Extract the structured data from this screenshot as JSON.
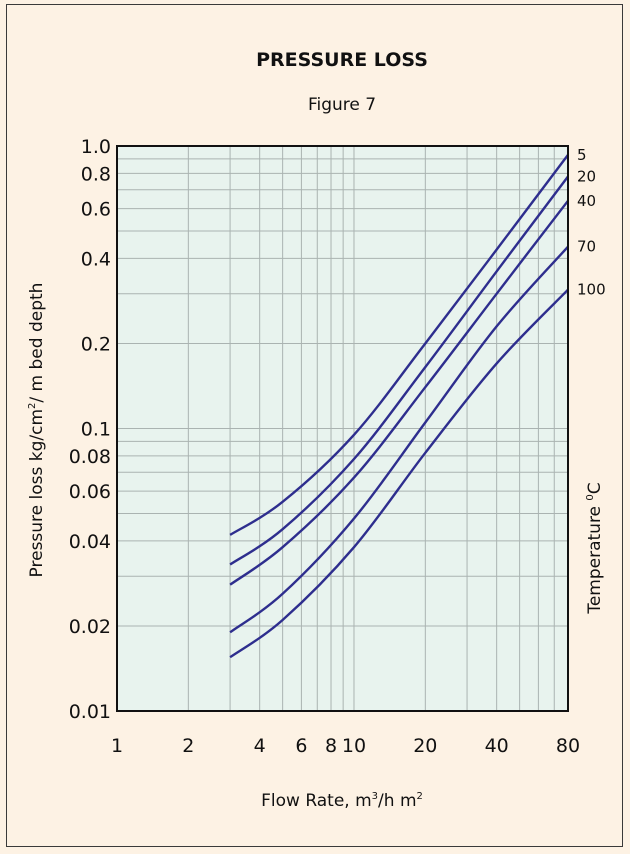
{
  "chart_data": {
    "type": "line",
    "title": "PRESSURE LOSS",
    "subtitle": "Figure 7",
    "xlabel": {
      "text": "Flow Rate, m",
      "sup1": "3",
      "mid": "/h m",
      "sup2": "2"
    },
    "ylabel": {
      "text": "Pressure loss kg/cm",
      "sup": "2",
      "rest": "/ m bed depth"
    },
    "y2label": {
      "text": "Temperature ",
      "sup": "0",
      "rest": "C"
    },
    "xscale": "log",
    "yscale": "log",
    "xlim": [
      1,
      80
    ],
    "ylim": [
      0.01,
      1.0
    ],
    "grid": true,
    "background": "#e8f3ee",
    "line_color": "#2e2e8e",
    "xticks": [
      {
        "v": 1,
        "label": "1"
      },
      {
        "v": 2,
        "label": "2"
      },
      {
        "v": 4,
        "label": "4"
      },
      {
        "v": 6,
        "label": "6"
      },
      {
        "v": 8,
        "label": "8"
      },
      {
        "v": 10,
        "label": "10"
      },
      {
        "v": 20,
        "label": "20"
      },
      {
        "v": 40,
        "label": "40"
      },
      {
        "v": 80,
        "label": "80"
      }
    ],
    "yticks": [
      {
        "v": 0.01,
        "label": "0.01"
      },
      {
        "v": 0.02,
        "label": "0.02"
      },
      {
        "v": 0.04,
        "label": "0.04"
      },
      {
        "v": 0.06,
        "label": "0.06"
      },
      {
        "v": 0.08,
        "label": "0.08"
      },
      {
        "v": 0.1,
        "label": "0.1"
      },
      {
        "v": 0.2,
        "label": "0.2"
      },
      {
        "v": 0.4,
        "label": "0.4"
      },
      {
        "v": 0.6,
        "label": "0.6"
      },
      {
        "v": 0.8,
        "label": "0.8"
      },
      {
        "v": 1.0,
        "label": "1.0"
      }
    ],
    "series": [
      {
        "name": "5",
        "x": [
          3,
          5,
          10,
          20,
          40,
          80
        ],
        "y": [
          0.042,
          0.055,
          0.095,
          0.2,
          0.43,
          0.93
        ]
      },
      {
        "name": "20",
        "x": [
          3,
          5,
          10,
          20,
          40,
          80
        ],
        "y": [
          0.033,
          0.044,
          0.078,
          0.165,
          0.36,
          0.78
        ]
      },
      {
        "name": "40",
        "x": [
          3,
          5,
          10,
          20,
          40,
          80
        ],
        "y": [
          0.028,
          0.038,
          0.067,
          0.14,
          0.3,
          0.64
        ]
      },
      {
        "name": "70",
        "x": [
          3,
          5,
          10,
          20,
          40,
          80
        ],
        "y": [
          0.019,
          0.026,
          0.048,
          0.105,
          0.23,
          0.44
        ]
      },
      {
        "name": "100",
        "x": [
          3,
          5,
          10,
          20,
          40,
          80
        ],
        "y": [
          0.0155,
          0.021,
          0.038,
          0.082,
          0.17,
          0.31
        ]
      }
    ]
  }
}
